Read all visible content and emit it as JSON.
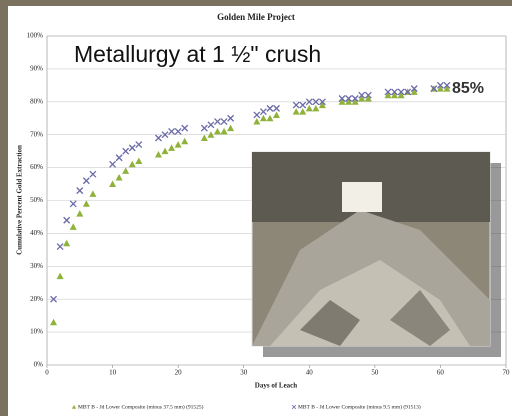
{
  "chart_data": {
    "type": "scatter",
    "title": "Golden Mile Project",
    "subtitle": "Metallurgy at 1 ½\" crush",
    "annotation": "85%",
    "x_label": "Days of Leach",
    "y_label": "Cumulative Percent Gold Extraction",
    "x": [
      1,
      2,
      3,
      4,
      5,
      6,
      7,
      10,
      11,
      12,
      13,
      14,
      17,
      18,
      19,
      20,
      21,
      24,
      25,
      26,
      27,
      28,
      32,
      33,
      34,
      35,
      38,
      39,
      40,
      41,
      42,
      45,
      46,
      47,
      48,
      49,
      52,
      53,
      54,
      55,
      56,
      59,
      60,
      61
    ],
    "series": [
      {
        "name": "MBT B - Jd Lower Composite (minus 37.5 mm) (91525)",
        "color": "#8fb23a",
        "marker": "triangle",
        "values": [
          13,
          27,
          37,
          42,
          46,
          49,
          52,
          55,
          57,
          59,
          61,
          62,
          64,
          65,
          66,
          67,
          68,
          69,
          70,
          71,
          71,
          72,
          74,
          75,
          75,
          76,
          77,
          77,
          78,
          78,
          79,
          80,
          80,
          80,
          81,
          81,
          82,
          82,
          82,
          83,
          83,
          84,
          84,
          84
        ]
      },
      {
        "name": "MBT B - Jd Lower Composite (minus 9.5 mm) (91513)",
        "color": "#6a6aa8",
        "marker": "x",
        "values": [
          20,
          36,
          44,
          49,
          53,
          56,
          58,
          61,
          63,
          65,
          66,
          67,
          69,
          70,
          71,
          71,
          72,
          72,
          73,
          74,
          74,
          75,
          76,
          77,
          78,
          78,
          79,
          79,
          80,
          80,
          80,
          81,
          81,
          81,
          82,
          82,
          83,
          83,
          83,
          83,
          84,
          84,
          85,
          85
        ]
      }
    ],
    "xlim": [
      0,
      70
    ],
    "xticks": [
      0,
      10,
      20,
      30,
      40,
      50,
      60,
      70
    ],
    "ylim": [
      0,
      100
    ],
    "yticks": [
      {
        "value": 0,
        "label": "0%"
      },
      {
        "value": 10,
        "label": "10%"
      },
      {
        "value": 20,
        "label": "20%"
      },
      {
        "value": 30,
        "label": "30%"
      },
      {
        "value": 40,
        "label": "40%"
      },
      {
        "value": 50,
        "label": "50%"
      },
      {
        "value": 60,
        "label": "60%"
      },
      {
        "value": 70,
        "label": "70%"
      },
      {
        "value": 80,
        "label": "80%"
      },
      {
        "value": 90,
        "label": "90%"
      },
      {
        "value": 100,
        "label": "100%"
      }
    ],
    "grid": true
  }
}
